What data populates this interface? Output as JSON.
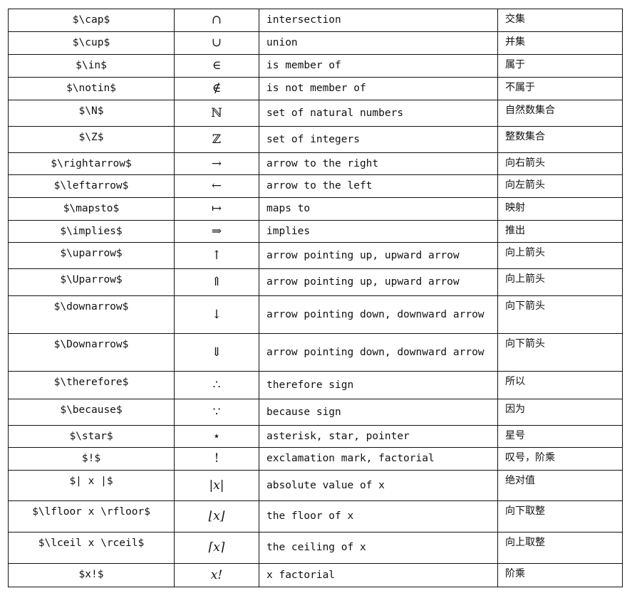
{
  "rows": [
    {
      "latex": "$\\cap$",
      "symbol": "∩",
      "description": "intersection",
      "chinese": "交集"
    },
    {
      "latex": "$\\cup$",
      "symbol": "∪",
      "description": "union",
      "chinese": "并集"
    },
    {
      "latex": "$\\in$",
      "symbol": "∈",
      "description": "is member of",
      "chinese": "属于"
    },
    {
      "latex": "$\\notin$",
      "symbol": "∉",
      "description": "is not member of",
      "chinese": "不属于"
    },
    {
      "latex": "$\\N$",
      "symbol": "ℕ",
      "description": "set of natural numbers",
      "chinese": "自然数集合"
    },
    {
      "latex": "$\\Z$",
      "symbol": "ℤ",
      "description": "set of integers",
      "chinese": "整数集合"
    },
    {
      "latex": "$\\rightarrow$",
      "symbol": "→",
      "description": "arrow to the right",
      "chinese": "向右箭头"
    },
    {
      "latex": "$\\leftarrow$",
      "symbol": "←",
      "description": "arrow to the left",
      "chinese": "向左箭头"
    },
    {
      "latex": "$\\mapsto$",
      "symbol": "↦",
      "description": "maps to",
      "chinese": "映射"
    },
    {
      "latex": "$\\implies$",
      "symbol": "⇒",
      "description": "implies",
      "chinese": "推出"
    },
    {
      "latex": "$\\uparrow$",
      "symbol": "↑",
      "description": "arrow pointing up, upward arrow",
      "chinese": "向上箭头"
    },
    {
      "latex": "$\\Uparrow$",
      "symbol": "⇑",
      "description": "arrow pointing up, upward arrow",
      "chinese": "向上箭头"
    },
    {
      "latex": "$\\downarrow$",
      "symbol": "↓",
      "description": "arrow pointing down, downward arrow",
      "chinese": "向下箭头"
    },
    {
      "latex": "$\\Downarrow$",
      "symbol": "⇓",
      "description": "arrow pointing down, downward arrow",
      "chinese": "向下箭头"
    },
    {
      "latex": "$\\therefore$",
      "symbol": "∴",
      "description": "therefore sign",
      "chinese": "所以"
    },
    {
      "latex": "$\\because$",
      "symbol": "∵",
      "description": "because sign",
      "chinese": "因为"
    },
    {
      "latex": "$\\star$",
      "symbol": "⋆",
      "description": "asterisk, star, pointer",
      "chinese": "星号"
    },
    {
      "latex": "$!$",
      "symbol": "!",
      "description": "exclamation mark, factorial",
      "chinese": "叹号，阶乘"
    },
    {
      "latex": "$| x |$",
      "symbol": "|x|",
      "description": "absolute value of x",
      "chinese": "绝对值"
    },
    {
      "latex": "$\\lfloor x \\rfloor$",
      "symbol": "⌊x⌋",
      "description": "the floor of x",
      "chinese": "向下取整"
    },
    {
      "latex": "$\\lceil x \\rceil$",
      "symbol": "⌈x⌉",
      "description": "the ceiling of x",
      "chinese": "向上取整"
    },
    {
      "latex": "$x!$",
      "symbol": "x!",
      "description": "x factorial",
      "chinese": "阶乘"
    }
  ]
}
